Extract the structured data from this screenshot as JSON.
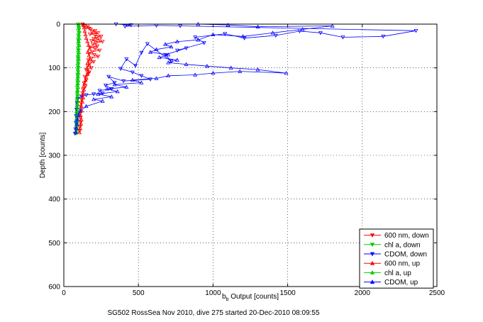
{
  "chart_data": {
    "type": "scatter",
    "xlabel_main": "b",
    "xlabel_sub": "b",
    "xlabel_rest": " Output [counts]",
    "ylabel": "Depth [counts]",
    "caption": "SG502 RossSea Nov 2010, dive 275 started 20-Dec-2010 08:09:55",
    "xlim": [
      0,
      2500
    ],
    "ylim": [
      0,
      600
    ],
    "y_reversed": true,
    "grid": true,
    "grid_style": "dotted",
    "legend_position": "bottom-right",
    "x_ticks": [
      "0",
      "500",
      "1000",
      "1500",
      "2000",
      "2500"
    ],
    "y_ticks": [
      "0",
      "100",
      "200",
      "300",
      "400",
      "500",
      "600"
    ],
    "series": [
      {
        "name": "600 nm, down",
        "color": "#ff0000",
        "marker": "triangle-down",
        "points": [
          [
            125,
            0
          ],
          [
            128,
            2
          ],
          [
            140,
            4
          ],
          [
            160,
            6
          ],
          [
            150,
            8
          ],
          [
            170,
            10
          ],
          [
            180,
            12
          ],
          [
            210,
            15
          ],
          [
            190,
            18
          ],
          [
            230,
            20
          ],
          [
            175,
            23
          ],
          [
            210,
            25
          ],
          [
            250,
            28
          ],
          [
            220,
            30
          ],
          [
            200,
            33
          ],
          [
            240,
            35
          ],
          [
            185,
            38
          ],
          [
            260,
            40
          ],
          [
            215,
            43
          ],
          [
            195,
            46
          ],
          [
            225,
            50
          ],
          [
            175,
            53
          ],
          [
            210,
            56
          ],
          [
            240,
            60
          ],
          [
            190,
            63
          ],
          [
            170,
            67
          ],
          [
            205,
            70
          ],
          [
            230,
            74
          ],
          [
            185,
            78
          ],
          [
            165,
            82
          ],
          [
            200,
            86
          ],
          [
            175,
            90
          ],
          [
            160,
            95
          ],
          [
            185,
            100
          ],
          [
            150,
            105
          ],
          [
            170,
            110
          ],
          [
            160,
            115
          ],
          [
            140,
            120
          ],
          [
            150,
            128
          ],
          [
            135,
            135
          ],
          [
            145,
            142
          ],
          [
            130,
            150
          ],
          [
            125,
            158
          ],
          [
            120,
            165
          ],
          [
            118,
            172
          ],
          [
            115,
            180
          ],
          [
            112,
            188
          ],
          [
            110,
            195
          ],
          [
            108,
            205
          ],
          [
            110,
            215
          ],
          [
            112,
            225
          ],
          [
            108,
            235
          ],
          [
            105,
            245
          ]
        ]
      },
      {
        "name": "chl a, down",
        "color": "#00cc00",
        "marker": "triangle-down",
        "points": [
          [
            95,
            0
          ],
          [
            98,
            5
          ],
          [
            100,
            10
          ],
          [
            96,
            15
          ],
          [
            102,
            20
          ],
          [
            97,
            25
          ],
          [
            99,
            30
          ],
          [
            95,
            35
          ],
          [
            98,
            40
          ],
          [
            96,
            45
          ],
          [
            100,
            50
          ],
          [
            94,
            55
          ],
          [
            97,
            60
          ],
          [
            95,
            65
          ],
          [
            98,
            70
          ],
          [
            93,
            75
          ],
          [
            96,
            80
          ],
          [
            94,
            85
          ],
          [
            97,
            90
          ],
          [
            92,
            95
          ],
          [
            95,
            100
          ],
          [
            93,
            105
          ],
          [
            96,
            110
          ],
          [
            91,
            115
          ],
          [
            94,
            120
          ],
          [
            92,
            125
          ],
          [
            90,
            130
          ],
          [
            93,
            135
          ],
          [
            91,
            140
          ],
          [
            89,
            145
          ],
          [
            92,
            150
          ],
          [
            90,
            155
          ],
          [
            88,
            160
          ],
          [
            91,
            165
          ],
          [
            89,
            170
          ],
          [
            87,
            175
          ],
          [
            90,
            180
          ],
          [
            88,
            185
          ],
          [
            86,
            190
          ],
          [
            89,
            195
          ],
          [
            87,
            200
          ],
          [
            85,
            205
          ],
          [
            88,
            210
          ],
          [
            86,
            215
          ],
          [
            84,
            220
          ],
          [
            87,
            225
          ],
          [
            85,
            230
          ],
          [
            83,
            235
          ],
          [
            86,
            240
          ],
          [
            84,
            245
          ],
          [
            82,
            250
          ]
        ]
      },
      {
        "name": "CDOM, down",
        "color": "#0000ff",
        "marker": "triangle-down",
        "points": [
          [
            350,
            0
          ],
          [
            450,
            2
          ],
          [
            410,
            5
          ],
          [
            620,
            3
          ],
          [
            780,
            4
          ],
          [
            2360,
            15
          ],
          [
            2140,
            28
          ],
          [
            1870,
            30
          ],
          [
            1720,
            20
          ],
          [
            1580,
            16
          ],
          [
            1420,
            26
          ],
          [
            1210,
            32
          ],
          [
            1080,
            22
          ],
          [
            880,
            30
          ],
          [
            940,
            43
          ],
          [
            760,
            60
          ],
          [
            820,
            55
          ],
          [
            680,
            70
          ],
          [
            720,
            85
          ],
          [
            560,
            45
          ],
          [
            520,
            65
          ],
          [
            480,
            95
          ],
          [
            420,
            80
          ],
          [
            380,
            102
          ],
          [
            460,
            110
          ],
          [
            520,
            118
          ],
          [
            580,
            126
          ],
          [
            400,
            130
          ],
          [
            300,
            120
          ],
          [
            340,
            134
          ],
          [
            280,
            140
          ],
          [
            320,
            148
          ],
          [
            240,
            152
          ],
          [
            260,
            158
          ],
          [
            200,
            160
          ],
          [
            150,
            162
          ],
          [
            120,
            165
          ],
          [
            95,
            170
          ],
          [
            88,
            180
          ],
          [
            85,
            195
          ],
          [
            82,
            210
          ],
          [
            80,
            225
          ],
          [
            78,
            240
          ],
          [
            75,
            250
          ]
        ]
      },
      {
        "name": "600 nm, up",
        "color": "#ff0000",
        "marker": "triangle-up",
        "points": [
          [
            105,
            248
          ],
          [
            110,
            238
          ],
          [
            115,
            228
          ],
          [
            118,
            218
          ],
          [
            112,
            208
          ],
          [
            120,
            198
          ],
          [
            118,
            188
          ],
          [
            125,
            178
          ],
          [
            130,
            168
          ],
          [
            128,
            160
          ],
          [
            135,
            150
          ],
          [
            132,
            142
          ],
          [
            140,
            135
          ],
          [
            145,
            128
          ],
          [
            150,
            122
          ],
          [
            158,
            115
          ],
          [
            165,
            108
          ],
          [
            155,
            100
          ],
          [
            170,
            94
          ],
          [
            160,
            88
          ],
          [
            175,
            80
          ],
          [
            168,
            72
          ],
          [
            160,
            64
          ],
          [
            172,
            56
          ],
          [
            165,
            48
          ],
          [
            158,
            40
          ],
          [
            150,
            32
          ],
          [
            145,
            24
          ],
          [
            140,
            16
          ],
          [
            135,
            8
          ],
          [
            130,
            2
          ]
        ]
      },
      {
        "name": "chl a, up",
        "color": "#00cc00",
        "marker": "triangle-up",
        "points": [
          [
            85,
            248
          ],
          [
            88,
            240
          ],
          [
            86,
            232
          ],
          [
            90,
            224
          ],
          [
            88,
            216
          ],
          [
            91,
            208
          ],
          [
            89,
            200
          ],
          [
            93,
            192
          ],
          [
            91,
            184
          ],
          [
            94,
            176
          ],
          [
            92,
            168
          ],
          [
            95,
            160
          ],
          [
            93,
            152
          ],
          [
            96,
            144
          ],
          [
            94,
            136
          ],
          [
            97,
            128
          ],
          [
            95,
            120
          ],
          [
            98,
            112
          ],
          [
            96,
            104
          ],
          [
            99,
            96
          ],
          [
            97,
            88
          ],
          [
            100,
            80
          ],
          [
            98,
            72
          ],
          [
            101,
            64
          ],
          [
            99,
            56
          ],
          [
            102,
            48
          ],
          [
            100,
            40
          ],
          [
            103,
            32
          ],
          [
            101,
            24
          ],
          [
            104,
            16
          ],
          [
            102,
            8
          ],
          [
            100,
            2
          ]
        ]
      },
      {
        "name": "CDOM, up",
        "color": "#0000ff",
        "marker": "triangle-up",
        "points": [
          [
            80,
            248
          ],
          [
            85,
            238
          ],
          [
            88,
            228
          ],
          [
            92,
            218
          ],
          [
            98,
            208
          ],
          [
            110,
            198
          ],
          [
            150,
            188
          ],
          [
            260,
            176
          ],
          [
            200,
            172
          ],
          [
            320,
            166
          ],
          [
            230,
            160
          ],
          [
            360,
            154
          ],
          [
            290,
            148
          ],
          [
            420,
            144
          ],
          [
            340,
            138
          ],
          [
            520,
            134
          ],
          [
            460,
            128
          ],
          [
            620,
            124
          ],
          [
            700,
            118
          ],
          [
            880,
            116
          ],
          [
            1000,
            112
          ],
          [
            1180,
            108
          ],
          [
            1490,
            112
          ],
          [
            1300,
            104
          ],
          [
            1120,
            100
          ],
          [
            960,
            96
          ],
          [
            820,
            92
          ],
          [
            700,
            88
          ],
          [
            760,
            82
          ],
          [
            640,
            76
          ],
          [
            700,
            70
          ],
          [
            580,
            64
          ],
          [
            620,
            58
          ],
          [
            720,
            52
          ],
          [
            680,
            46
          ],
          [
            760,
            40
          ],
          [
            900,
            36
          ],
          [
            1000,
            24
          ],
          [
            1200,
            28
          ],
          [
            1400,
            20
          ],
          [
            1600,
            12
          ],
          [
            1800,
            4
          ],
          [
            1300,
            6
          ],
          [
            1100,
            2
          ],
          [
            900,
            0
          ]
        ]
      }
    ]
  }
}
